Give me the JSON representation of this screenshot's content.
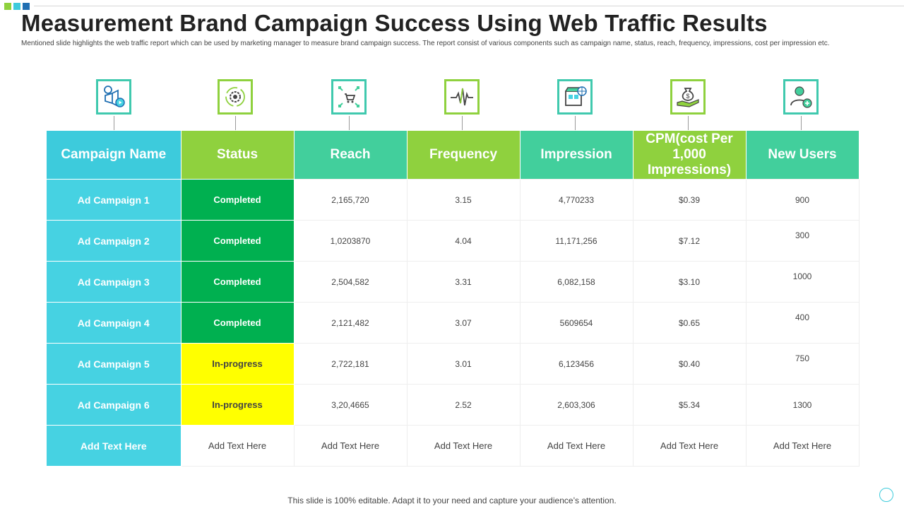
{
  "colors": {
    "teal": "#42cf9c",
    "cyan": "#3dcbdc",
    "green": "#8fd13e",
    "completed": "#00b050",
    "in_progress": "#ffff00",
    "title": "#222222"
  },
  "header": {
    "title": "Measurement Brand Campaign Success Using Web Traffic Results",
    "subtitle": "Mentioned slide highlights the web traffic report which can be used by marketing manager to measure brand campaign success. The report consist of various components such as campaign name, status, reach, frequency, impressions, cost per impression etc."
  },
  "icons": [
    "megaphone-icon",
    "gear-cycle-icon",
    "cart-network-icon",
    "pulse-wave-icon",
    "store-globe-icon",
    "money-bag-hand-icon",
    "add-user-icon"
  ],
  "table": {
    "columns": [
      "Campaign Name",
      "Status",
      "Reach",
      "Frequency",
      "Impression",
      "CPM(cost Per 1,000 Impressions)",
      "New Users"
    ],
    "rows": [
      {
        "name": "Ad Campaign 1",
        "status": "Completed",
        "reach": "2,165,720",
        "frequency": "3.15",
        "impression": "4,770233",
        "cpm": "$0.39",
        "new_users": "900"
      },
      {
        "name": "Ad Campaign 2",
        "status": "Completed",
        "reach": "1,0203870",
        "frequency": "4.04",
        "impression": "11,171,256",
        "cpm": "$7.12",
        "new_users": "300"
      },
      {
        "name": "Ad Campaign 3",
        "status": "Completed",
        "reach": "2,504,582",
        "frequency": "3.31",
        "impression": "6,082,158",
        "cpm": "$3.10",
        "new_users": "1000"
      },
      {
        "name": "Ad Campaign 4",
        "status": "Completed",
        "reach": "2,121,482",
        "frequency": "3.07",
        "impression": "5609654",
        "cpm": "$0.65",
        "new_users": "400"
      },
      {
        "name": "Ad Campaign 5",
        "status": "In-progress",
        "reach": "2,722,181",
        "frequency": "3.01",
        "impression": "6,123456",
        "cpm": "$0.40",
        "new_users": "750"
      },
      {
        "name": "Ad Campaign 6",
        "status": "In-progress",
        "reach": "3,20,4665",
        "frequency": "2.52",
        "impression": "2,603,306",
        "cpm": "$5.34",
        "new_users": "1300"
      },
      {
        "name": "Add  Text Here",
        "status": "Add Text Here",
        "reach": "Add Text Here",
        "frequency": "Add Text Here",
        "impression": "Add Text Here",
        "cpm": "Add Text Here",
        "new_users": "Add Text Here"
      }
    ]
  },
  "footer": {
    "note": "This slide is 100% editable. Adapt it to your need and capture your audience’s attention."
  }
}
